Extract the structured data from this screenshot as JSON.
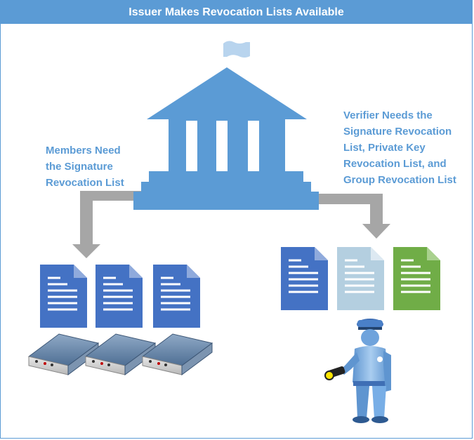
{
  "title": "Issuer Makes Revocation Lists Available",
  "members_caption": [
    "Members Need",
    "the Signature",
    "Revocation List"
  ],
  "verifier_caption": [
    "Verifier Needs the",
    "Signature Revocation",
    "List, Private Key",
    "Revocation List, and",
    "Group Revocation List"
  ],
  "colors": {
    "accent": "#5b9bd5",
    "arrow": "#a6a6a6",
    "doc_blue": "#4472c4",
    "doc_light": "#b4cfe0",
    "doc_green": "#70ad47",
    "device": "#5a7a9e"
  },
  "icons": [
    "flag-icon",
    "bank-building-icon",
    "document-icon",
    "server-device-icon",
    "guard-with-flashlight-icon"
  ]
}
